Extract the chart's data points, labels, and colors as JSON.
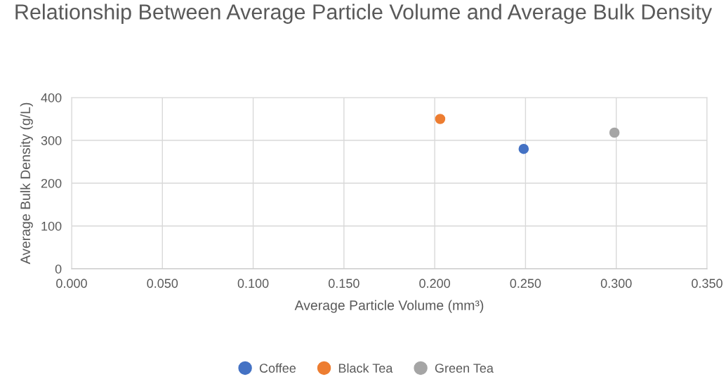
{
  "chart_data": {
    "type": "scatter",
    "title": "Relationship Between Average Particle Volume and Average Bulk Density",
    "xlabel": "Average Particle Volume (mm³)",
    "ylabel": "Average Bulk Density (g/L)",
    "series": [
      {
        "name": "Coffee",
        "color": "#4472c4",
        "x": [
          0.249
        ],
        "values": [
          280
        ]
      },
      {
        "name": "Black Tea",
        "color": "#ed7d31",
        "x": [
          0.203
        ],
        "values": [
          350
        ]
      },
      {
        "name": "Green Tea",
        "color": "#a5a5a5",
        "x": [
          0.299
        ],
        "values": [
          318
        ]
      }
    ],
    "xlim": [
      0,
      0.35
    ],
    "xticks": [
      {
        "value": 0,
        "label": "0.000"
      },
      {
        "value": 0.05,
        "label": "0.050"
      },
      {
        "value": 0.1,
        "label": "0.100"
      },
      {
        "value": 0.15,
        "label": "0.150"
      },
      {
        "value": 0.2,
        "label": "0.200"
      },
      {
        "value": 0.25,
        "label": "0.250"
      },
      {
        "value": 0.3,
        "label": "0.300"
      },
      {
        "value": 0.35,
        "label": "0.350"
      }
    ],
    "ylim": [
      0,
      400
    ],
    "yticks": [
      0,
      100,
      200,
      300,
      400
    ],
    "grid": true,
    "legend": "bottom",
    "marker": "circle"
  }
}
